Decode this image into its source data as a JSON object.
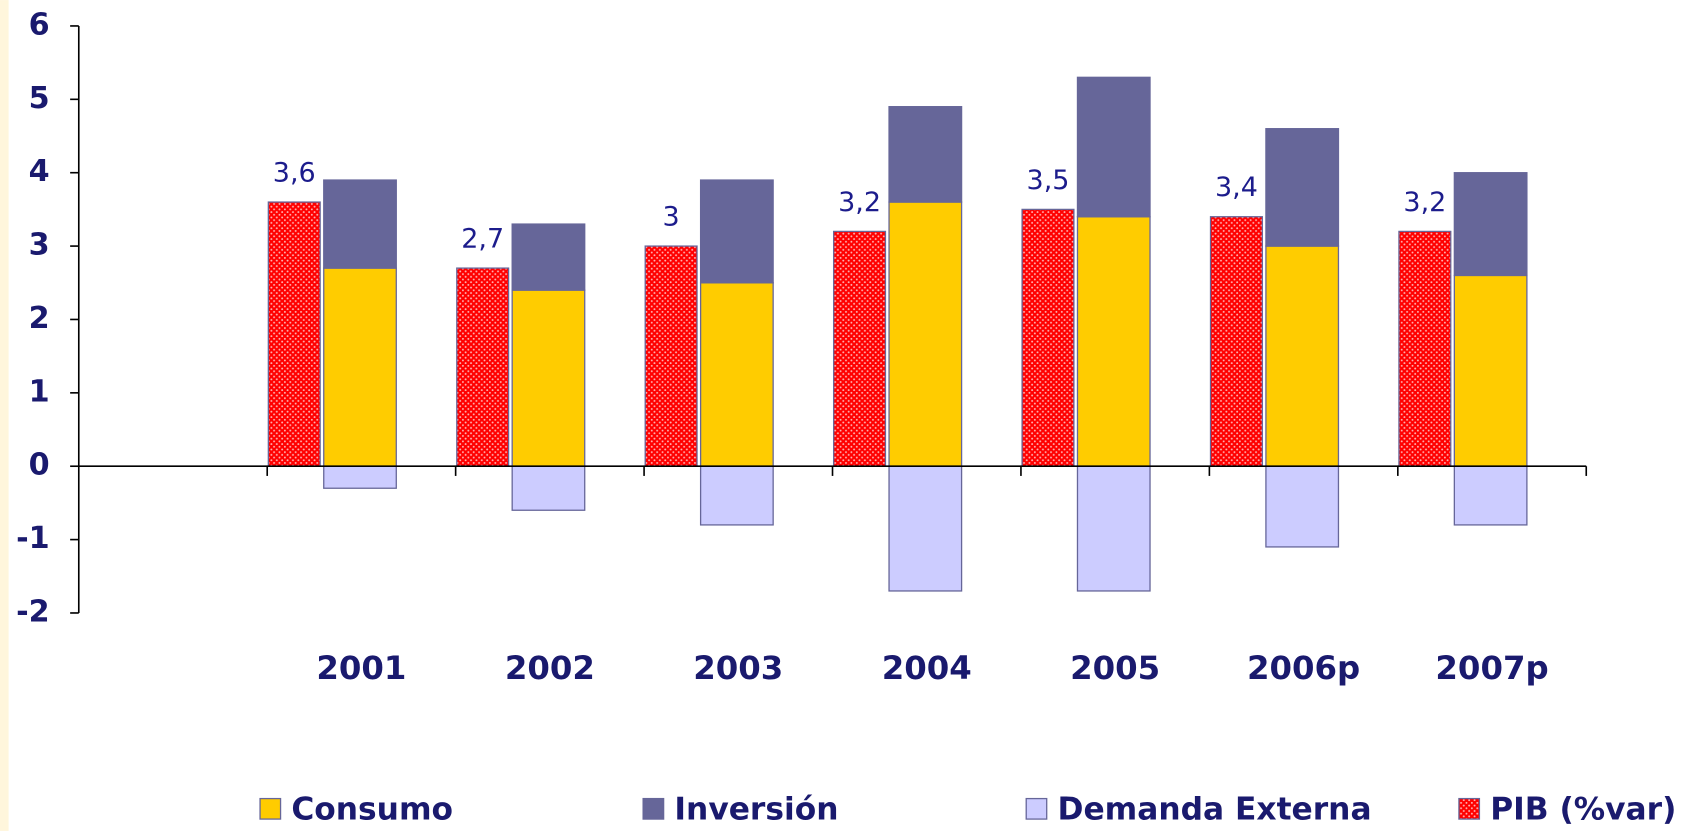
{
  "chart_data": {
    "type": "bar",
    "categories": [
      null,
      "2001",
      "2002",
      "2003",
      "2004",
      "2005",
      "2006p",
      "2007p"
    ],
    "series": [
      {
        "name": "Consumo",
        "color": "#ffcc00",
        "values": [
          null,
          2.7,
          2.4,
          2.5,
          3.6,
          3.4,
          3.0,
          2.6
        ]
      },
      {
        "name": "Inversión",
        "color": "#666699",
        "values": [
          null,
          1.2,
          0.9,
          1.4,
          1.3,
          1.9,
          1.6,
          1.4
        ]
      },
      {
        "name": "Demanda Externa",
        "color": "#ccccff",
        "values": [
          null,
          -0.3,
          -0.6,
          -0.8,
          -1.7,
          -1.7,
          -1.1,
          -0.8
        ]
      },
      {
        "name": "PIB (%var)",
        "color": "#ff0000",
        "pattern": "dots",
        "stacked": false,
        "values": [
          null,
          3.6,
          2.7,
          3,
          3.2,
          3.5,
          3.4,
          3.2
        ],
        "value_labels": [
          null,
          "3,6",
          "2,7",
          "3",
          "3,2",
          "3,5",
          "3,4",
          "3,2"
        ]
      }
    ],
    "ylim": [
      -2,
      6
    ],
    "yticks": [
      -2,
      -1,
      0,
      1,
      2,
      3,
      4,
      5,
      6
    ]
  }
}
